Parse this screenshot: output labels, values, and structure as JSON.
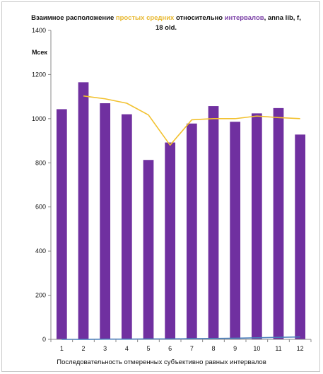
{
  "chart_data": {
    "type": "bar",
    "title_parts": [
      {
        "text": "Взаимное  расположение  ",
        "cls": ""
      },
      {
        "text": "простых средних",
        "cls": "sma"
      },
      {
        "text": "  относительно  ",
        "cls": ""
      },
      {
        "text": "интервалов",
        "cls": "intv"
      },
      {
        "text": ", anna lib, f,",
        "cls": ""
      },
      {
        "text": "\n18 old.",
        "cls": ""
      }
    ],
    "unit_label": "Мсек",
    "xlabel": "Последовательность отмеренных субъективно равных интервалов",
    "categories": [
      "1",
      "2",
      "3",
      "4",
      "5",
      "6",
      "7",
      "8",
      "9",
      "10",
      "11",
      "12"
    ],
    "ylim": [
      0,
      1400
    ],
    "yticks": [
      0,
      200,
      400,
      600,
      800,
      1000,
      1200,
      1400
    ],
    "grid": false,
    "series": [
      {
        "type": "bar",
        "color": "#7030a0",
        "values": [
          1043,
          1165,
          1070,
          1020,
          813,
          892,
          978,
          1057,
          986,
          1024,
          1048,
          928
        ]
      },
      {
        "type": "line",
        "color": "#f2c12e",
        "values": [
          null,
          1103,
          1090,
          1070,
          1017,
          880,
          995,
          1000,
          1000,
          1012,
          1005,
          1000
        ]
      },
      {
        "type": "line",
        "color": "#4a7ebb",
        "values": [
          0,
          0,
          1,
          1,
          2,
          2,
          3,
          4,
          5,
          7,
          9,
          11
        ]
      }
    ]
  }
}
